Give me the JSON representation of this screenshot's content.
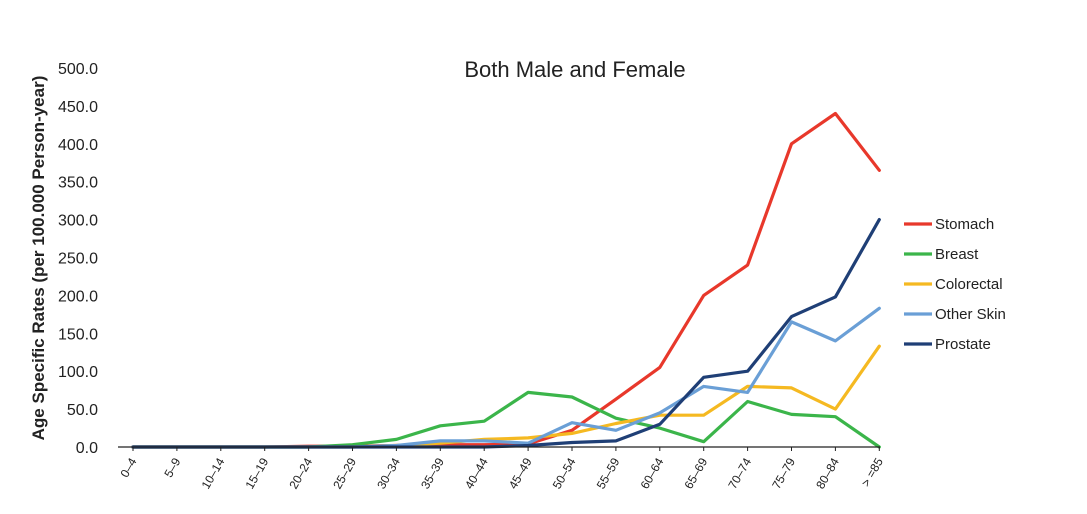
{
  "chart_data": {
    "type": "line",
    "title": "Both Male and Female",
    "xlabel": "",
    "ylabel": "Age Specific Rates (per 100.000 Person-year)",
    "categories": [
      "0–4",
      "5–9",
      "10–14",
      "15–19",
      "20–24",
      "25–29",
      "30–34",
      "35–39",
      "40–44",
      "45–49",
      "50–54",
      "55–59",
      "60–64",
      "65–69",
      "70–74",
      "75–79",
      "80–84",
      "> =85"
    ],
    "ylim": [
      0,
      500
    ],
    "yticks": [
      "0.0",
      "50.0",
      "100.0",
      "150.0",
      "200.0",
      "250.0",
      "300.0",
      "350.0",
      "400.0",
      "450.0",
      "500.0"
    ],
    "grid": false,
    "legend_position": "right",
    "series": [
      {
        "name": "Stomach",
        "color": "#e8382b",
        "values": [
          0,
          0,
          0,
          0,
          1,
          1,
          2,
          3,
          3,
          4,
          22,
          63,
          105,
          200,
          240,
          400,
          440,
          365
        ]
      },
      {
        "name": "Breast",
        "color": "#3bb54a",
        "values": [
          0,
          0,
          0,
          0,
          0,
          3,
          10,
          28,
          34,
          72,
          66,
          38,
          25,
          7,
          60,
          43,
          40,
          0
        ]
      },
      {
        "name": "Colorectal",
        "color": "#f5b921",
        "values": [
          0,
          0,
          0,
          0,
          0,
          0,
          2,
          5,
          10,
          12,
          18,
          31,
          42,
          42,
          80,
          78,
          50,
          133
        ]
      },
      {
        "name": "Other Skin",
        "color": "#6a9fd6",
        "values": [
          0,
          0,
          0,
          0,
          0,
          0,
          2,
          8,
          8,
          5,
          32,
          22,
          45,
          80,
          72,
          165,
          140,
          183
        ]
      },
      {
        "name": "Prostate",
        "color": "#1f3f76",
        "values": [
          0,
          0,
          0,
          0,
          0,
          0,
          0,
          0,
          0,
          2,
          6,
          8,
          30,
          92,
          100,
          172,
          198,
          300
        ]
      }
    ]
  }
}
